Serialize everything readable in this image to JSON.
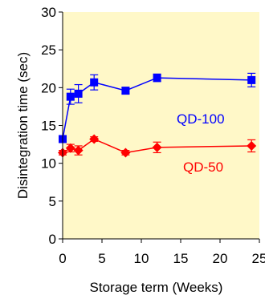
{
  "chart_data": {
    "type": "line",
    "title": "",
    "xlabel": "Storage term (Weeks)",
    "ylabel": "Disintegration time (sec)",
    "xlim": [
      0,
      25
    ],
    "ylim": [
      0,
      30
    ],
    "xticks": [
      "0",
      "5",
      "10",
      "15",
      "20",
      "25"
    ],
    "yticks": [
      "0",
      "5",
      "10",
      "15",
      "20",
      "25",
      "30"
    ],
    "plot_background": "#FFF8C8",
    "grid": false,
    "legend": "none",
    "series": [
      {
        "name": "QD-100",
        "color": "#0000FF",
        "marker": "square",
        "x": [
          0,
          1,
          2,
          4,
          8,
          12,
          24
        ],
        "y": [
          13.2,
          18.8,
          19.2,
          20.7,
          19.6,
          21.3,
          21.0
        ],
        "err": [
          0.4,
          1.0,
          1.2,
          1.0,
          0.4,
          0.5,
          0.9
        ]
      },
      {
        "name": "QD-50",
        "color": "#FF0000",
        "marker": "diamond",
        "x": [
          0,
          1,
          2,
          4,
          8,
          12,
          24
        ],
        "y": [
          11.4,
          12.0,
          11.7,
          13.2,
          11.4,
          12.1,
          12.3
        ],
        "err": [
          0.3,
          0.5,
          0.6,
          0.3,
          0.3,
          0.7,
          0.8
        ]
      }
    ]
  }
}
